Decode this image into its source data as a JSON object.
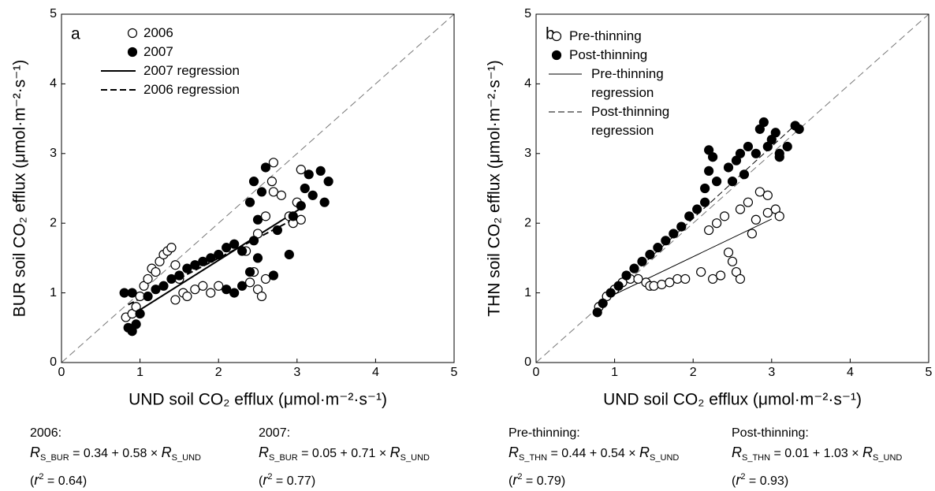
{
  "chart_data": [
    {
      "type": "scatter",
      "label": "a",
      "xlabel": "UND soil CO₂ efflux (μmol·m⁻²·s⁻¹)",
      "ylabel": "BUR soil CO₂ efflux (μmol·m⁻²·s⁻¹)",
      "xlim": [
        0,
        5
      ],
      "ylim": [
        0,
        5
      ],
      "xticks": [
        0,
        1,
        2,
        3,
        4,
        5
      ],
      "yticks": [
        0,
        1,
        2,
        3,
        4,
        5
      ],
      "series": [
        {
          "name": "2006",
          "marker": "open",
          "x": [
            0.82,
            0.9,
            0.95,
            1.0,
            1.05,
            1.1,
            1.15,
            1.2,
            1.25,
            1.3,
            1.35,
            1.4,
            1.45,
            1.5,
            1.45,
            1.55,
            1.6,
            1.7,
            1.8,
            1.9,
            2.0,
            2.4,
            2.5,
            2.55,
            2.6,
            2.45,
            2.35,
            2.5,
            2.6,
            2.7,
            2.68,
            2.7,
            2.8,
            2.9,
            3.0,
            3.05,
            2.95,
            3.05
          ],
          "y": [
            0.65,
            0.7,
            0.8,
            0.95,
            1.1,
            1.2,
            1.35,
            1.3,
            1.45,
            1.55,
            1.6,
            1.65,
            1.4,
            1.2,
            0.9,
            1.0,
            0.95,
            1.05,
            1.1,
            1.0,
            1.1,
            1.15,
            1.05,
            0.95,
            1.2,
            1.3,
            1.6,
            1.85,
            2.1,
            2.45,
            2.6,
            2.87,
            2.4,
            2.1,
            2.3,
            2.77,
            2.0,
            2.05
          ]
        },
        {
          "name": "2007",
          "marker": "filled",
          "x": [
            0.8,
            0.85,
            0.9,
            0.95,
            1.0,
            0.9,
            1.1,
            1.2,
            1.3,
            1.4,
            1.5,
            1.6,
            1.7,
            1.8,
            1.9,
            2.0,
            2.1,
            2.2,
            2.3,
            2.1,
            2.2,
            2.3,
            2.4,
            2.5,
            2.45,
            2.5,
            2.4,
            2.45,
            2.55,
            2.6,
            2.75,
            2.9,
            2.7,
            2.95,
            3.05,
            3.1,
            3.15,
            3.2,
            3.3,
            3.35,
            3.4
          ],
          "y": [
            1.0,
            0.5,
            0.45,
            0.55,
            0.7,
            1.0,
            0.95,
            1.05,
            1.1,
            1.2,
            1.25,
            1.35,
            1.4,
            1.45,
            1.5,
            1.55,
            1.65,
            1.7,
            1.6,
            1.05,
            1.0,
            1.1,
            1.3,
            1.5,
            1.75,
            2.05,
            2.3,
            2.6,
            2.45,
            2.8,
            1.9,
            1.55,
            1.25,
            2.1,
            2.25,
            2.5,
            2.7,
            2.4,
            2.75,
            2.3,
            2.6
          ]
        }
      ],
      "lines": [
        {
          "name": "2007 regression",
          "dash": "solid",
          "width": 2,
          "x": [
            0.85,
            3.1
          ],
          "y": [
            0.65,
            2.25
          ]
        },
        {
          "name": "2006 regression",
          "dash": "dashed",
          "width": 2,
          "x": [
            0.85,
            3.0
          ],
          "y": [
            0.83,
            2.08
          ]
        }
      ],
      "equations": [
        {
          "title": "2006:",
          "formula": [
            {
              "t": "R",
              "style": "i"
            },
            {
              "t": "S_BUR",
              "style": "sub"
            },
            {
              "t": " = 0.34 + 0.58 × "
            },
            {
              "t": "R",
              "style": "i"
            },
            {
              "t": "S_UND",
              "style": "sub"
            }
          ],
          "fit": [
            {
              "t": "("
            },
            {
              "t": "r",
              "style": "i"
            },
            {
              "t": "2",
              "style": "sup"
            },
            {
              "t": " = 0.64)"
            }
          ]
        },
        {
          "title": "2007:",
          "formula": [
            {
              "t": "R",
              "style": "i"
            },
            {
              "t": "S_BUR",
              "style": "sub"
            },
            {
              "t": " = 0.05 + 0.71 × "
            },
            {
              "t": "R",
              "style": "i"
            },
            {
              "t": "S_UND",
              "style": "sub"
            }
          ],
          "fit": [
            {
              "t": "("
            },
            {
              "t": "r",
              "style": "i"
            },
            {
              "t": "2",
              "style": "sup"
            },
            {
              "t": " = 0.77)"
            }
          ]
        }
      ]
    },
    {
      "type": "scatter",
      "label": "b",
      "xlabel": "UND soil CO₂ efflux (μmol·m⁻²·s⁻¹)",
      "ylabel": "THN soil CO₂ efflux (μmol·m⁻²·s⁻¹)",
      "xlim": [
        0,
        5
      ],
      "ylim": [
        0,
        5
      ],
      "xticks": [
        0,
        1,
        2,
        3,
        4,
        5
      ],
      "yticks": [
        0,
        1,
        2,
        3,
        4,
        5
      ],
      "series": [
        {
          "name": "Pre-thinning",
          "marker": "open",
          "x": [
            0.8,
            0.9,
            1.0,
            1.1,
            1.2,
            1.3,
            1.4,
            1.45,
            1.5,
            1.6,
            1.7,
            1.8,
            1.9,
            2.1,
            2.2,
            2.3,
            2.4,
            2.25,
            2.35,
            2.5,
            2.55,
            2.6,
            2.45,
            2.6,
            2.7,
            2.8,
            2.85,
            2.95,
            2.95,
            3.05,
            3.1,
            2.75
          ],
          "y": [
            0.8,
            0.95,
            1.05,
            1.15,
            1.2,
            1.2,
            1.15,
            1.1,
            1.1,
            1.12,
            1.15,
            1.2,
            1.2,
            1.3,
            1.9,
            2.0,
            2.1,
            1.2,
            1.25,
            1.45,
            1.3,
            1.2,
            1.58,
            2.2,
            2.3,
            2.05,
            2.45,
            2.4,
            2.15,
            2.2,
            2.1,
            1.85
          ]
        },
        {
          "name": "Post-thinning",
          "marker": "filled",
          "x": [
            0.78,
            0.85,
            0.95,
            1.05,
            1.15,
            1.25,
            1.35,
            1.45,
            1.55,
            1.65,
            1.75,
            1.85,
            1.95,
            2.05,
            2.15,
            2.2,
            2.2,
            2.25,
            2.3,
            2.15,
            2.45,
            2.5,
            2.55,
            2.6,
            2.65,
            2.7,
            2.8,
            2.85,
            2.9,
            2.95,
            3.0,
            3.05,
            3.1,
            3.2,
            3.3,
            3.35,
            3.1
          ],
          "y": [
            0.72,
            0.85,
            1.0,
            1.1,
            1.25,
            1.35,
            1.45,
            1.55,
            1.65,
            1.75,
            1.85,
            1.95,
            2.1,
            2.2,
            2.5,
            2.75,
            3.05,
            2.95,
            2.6,
            2.3,
            2.8,
            2.6,
            2.9,
            3.0,
            2.7,
            3.1,
            3.0,
            3.35,
            3.45,
            3.1,
            3.2,
            3.3,
            3.0,
            3.1,
            3.4,
            3.35,
            2.95
          ]
        }
      ],
      "lines": [
        {
          "name": "Pre-thinning regression",
          "dash": "solid",
          "width": 1,
          "x": [
            0.8,
            3.0
          ],
          "y": [
            0.87,
            2.06
          ]
        },
        {
          "name": "Post-thinning regression",
          "dash": "dashed",
          "width": 1,
          "x": [
            0.8,
            3.3
          ],
          "y": [
            0.83,
            3.41
          ]
        }
      ],
      "equations": [
        {
          "title": "Pre-thinning:",
          "formula": [
            {
              "t": "R",
              "style": "i"
            },
            {
              "t": "S_THN",
              "style": "sub"
            },
            {
              "t": " = 0.44 + 0.54 × "
            },
            {
              "t": "R",
              "style": "i"
            },
            {
              "t": "S_UND",
              "style": "sub"
            }
          ],
          "fit": [
            {
              "t": "("
            },
            {
              "t": "r",
              "style": "i"
            },
            {
              "t": "2",
              "style": "sup"
            },
            {
              "t": " = 0.79)"
            }
          ]
        },
        {
          "title": "Post-thinning:",
          "formula": [
            {
              "t": "R",
              "style": "i"
            },
            {
              "t": "S_THN",
              "style": "sub"
            },
            {
              "t": " = 0.01 + 1.03 × "
            },
            {
              "t": "R",
              "style": "i"
            },
            {
              "t": "S_UND",
              "style": "sub"
            }
          ],
          "fit": [
            {
              "t": "("
            },
            {
              "t": "r",
              "style": "i"
            },
            {
              "t": "2",
              "style": "sup"
            },
            {
              "t": " = 0.93)"
            }
          ]
        }
      ]
    }
  ]
}
